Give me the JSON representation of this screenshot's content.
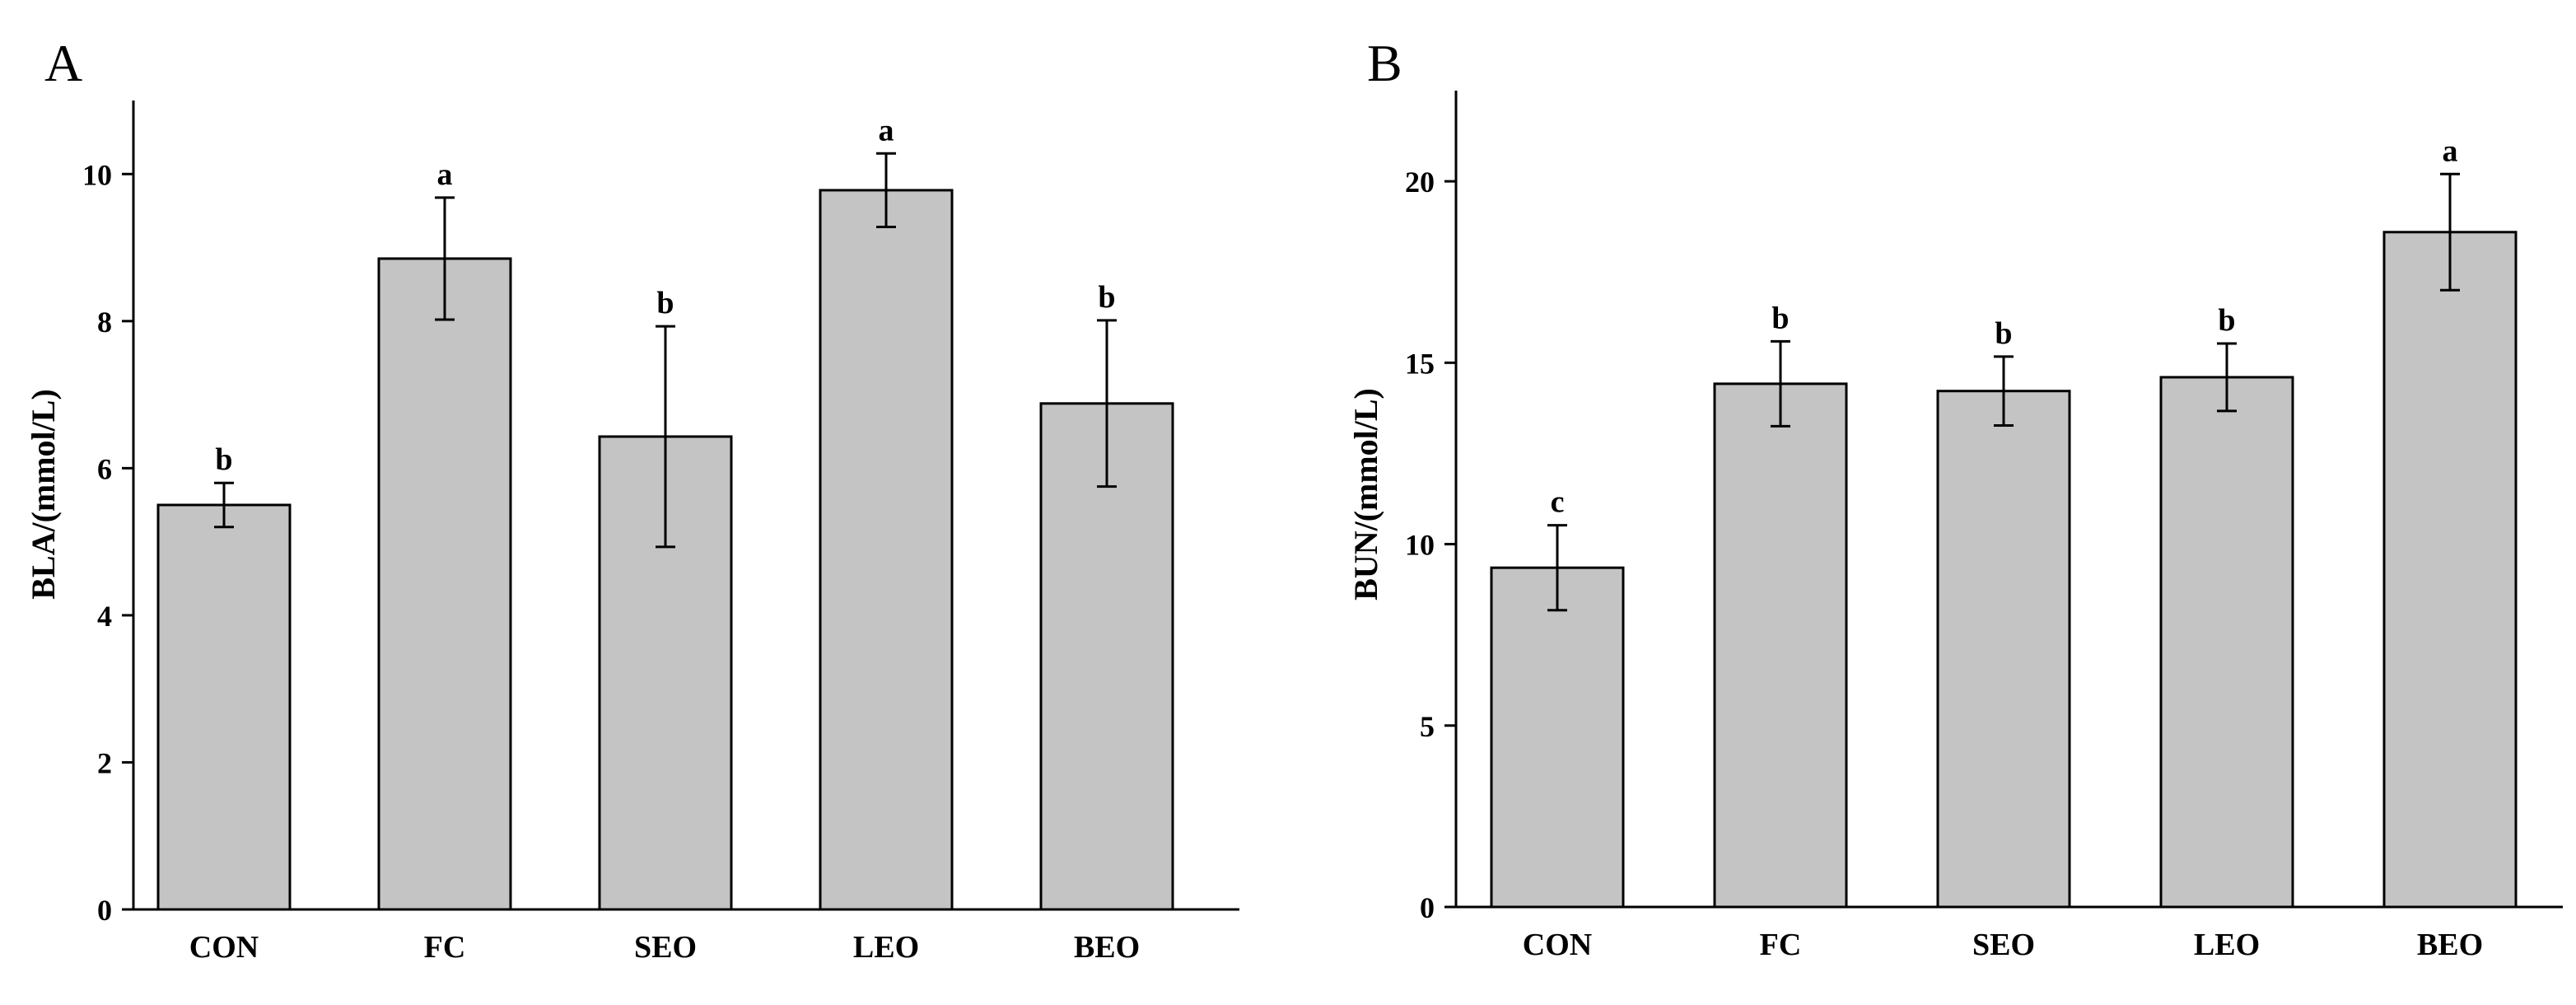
{
  "chart_data": [
    {
      "type": "bar",
      "panel": "A",
      "categories": [
        "CON",
        "FC",
        "SEO",
        "LEO",
        "BEO"
      ],
      "values": [
        5.5,
        8.85,
        6.43,
        9.78,
        6.88
      ],
      "errors": [
        0.3,
        0.83,
        1.5,
        0.5,
        1.13
      ],
      "significance": [
        "b",
        "a",
        "b",
        "a",
        "b"
      ],
      "ylabel": "BLA/(mmol/L)",
      "xlabel": "",
      "ylim": [
        0,
        11
      ],
      "yticks": [
        0,
        2,
        4,
        6,
        8,
        10
      ]
    },
    {
      "type": "bar",
      "panel": "B",
      "categories": [
        "CON",
        "FC",
        "SEO",
        "LEO",
        "BEO"
      ],
      "values": [
        9.35,
        14.42,
        14.22,
        14.6,
        18.6
      ],
      "errors": [
        1.17,
        1.17,
        0.95,
        0.93,
        1.6
      ],
      "significance": [
        "c",
        "b",
        "b",
        "b",
        "a"
      ],
      "ylabel": "BUN/(mmol/L)",
      "xlabel": "",
      "ylim": [
        0,
        22.5
      ],
      "yticks": [
        0,
        5,
        10,
        15,
        20
      ]
    }
  ]
}
